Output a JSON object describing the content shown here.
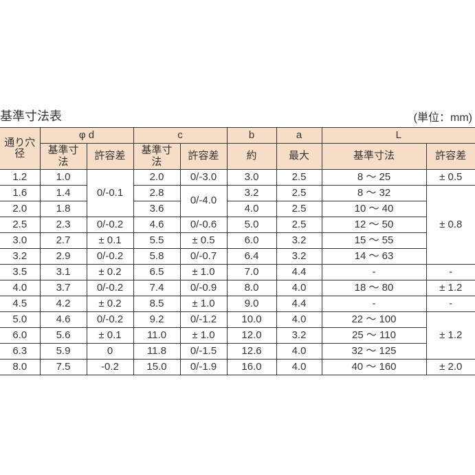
{
  "title": "基準寸法表",
  "units": "(単位：mm)",
  "header_bg": "#f6ddc8",
  "border_color": "#333333",
  "text_color": "#333333",
  "font_size_body": 15,
  "font_size_title": 18,
  "columns": {
    "nominal": "通り穴径",
    "phi_d": "φ d",
    "phi_d_base": "基準寸法",
    "phi_d_tol": "許容差",
    "c": "c",
    "c_base": "基準寸法",
    "c_tol": "許容差",
    "b": "b",
    "b_sub": "約",
    "a": "a",
    "a_sub": "最大",
    "L": "L",
    "L_base": "基準寸法",
    "L_tol": "許容差"
  },
  "rows": [
    {
      "nom": "1.2",
      "phi_b": "1.0",
      "phi_t": null,
      "c_b": "2.0",
      "c_t": "0/-3.0",
      "b": "3.0",
      "a": "2.5",
      "l_b": "8 ～ 25",
      "l_t": "± 0.5"
    },
    {
      "nom": "1.6",
      "phi_b": "1.4",
      "phi_t": "0/-0.1",
      "c_b": "2.8",
      "c_t": null,
      "b": "3.2",
      "a": "2.5",
      "l_b": "8 ～ 32",
      "l_t": null
    },
    {
      "nom": "2.0",
      "phi_b": "1.8",
      "phi_t": null,
      "c_b": "3.6",
      "c_t": "0/-4.0",
      "b": "4.0",
      "a": "2.5",
      "l_b": "10 ～ 40",
      "l_t": null
    },
    {
      "nom": "2.5",
      "phi_b": "2.3",
      "phi_t": "0/-0.2",
      "c_b": "4.6",
      "c_t": "0/-0.6",
      "b": "5.0",
      "a": "2.5",
      "l_b": "12 ～ 50",
      "l_t": "± 0.8"
    },
    {
      "nom": "3.0",
      "phi_b": "2.7",
      "phi_t": "± 0.1",
      "c_b": "5.5",
      "c_t": "± 0.5",
      "b": "6.0",
      "a": "3.2",
      "l_b": "15 ～ 55",
      "l_t": null
    },
    {
      "nom": "3.2",
      "phi_b": "2.9",
      "phi_t": "0/-0.2",
      "c_b": "5.8",
      "c_t": "0/-0.7",
      "b": "6.4",
      "a": "3.2",
      "l_b": "14 ～ 63",
      "l_t": null
    },
    {
      "nom": "3.5",
      "phi_b": "3.1",
      "phi_t": "± 0.2",
      "c_b": "6.5",
      "c_t": "± 1.0",
      "b": "7.0",
      "a": "4.4",
      "l_b": "-",
      "l_t": "-"
    },
    {
      "nom": "4.0",
      "phi_b": "3.7",
      "phi_t": "0/-0.2",
      "c_b": "7.4",
      "c_t": "0/-0.9",
      "b": "8.0",
      "a": "4.0",
      "l_b": "18 ～ 80",
      "l_t": "± 1.2"
    },
    {
      "nom": "4.5",
      "phi_b": "4.2",
      "phi_t": "± 0.2",
      "c_b": "8.5",
      "c_t": "± 1.0",
      "b": "9.0",
      "a": "4.4",
      "l_b": "-",
      "l_t": "-"
    },
    {
      "nom": "5.0",
      "phi_b": "4.6",
      "phi_t": "0/-0.2",
      "c_b": "9.2",
      "c_t": "0/-1.2",
      "b": "10.0",
      "a": "4.0",
      "l_b": "22 ～ 100",
      "l_t": null
    },
    {
      "nom": "6.0",
      "phi_b": "5.6",
      "phi_t": "± 0.1",
      "c_b": "11.0",
      "c_t": "± 1.0",
      "b": "12.0",
      "a": "3.2",
      "l_b": "25 ～ 110",
      "l_t": "± 1.2"
    },
    {
      "nom": "6.3",
      "phi_b": "5.9",
      "phi_t": "0",
      "c_b": "11.8",
      "c_t": "0/-1.5",
      "b": "12.6",
      "a": "4.0",
      "l_b": "32 ～ 125",
      "l_t": null
    },
    {
      "nom": "8.0",
      "phi_b": "7.5",
      "phi_t": "-0.2",
      "c_b": "15.0",
      "c_t": "0/-1.9",
      "b": "16.0",
      "a": "4.0",
      "l_b": "40 ～ 160",
      "l_t": "± 2.0"
    }
  ],
  "merges": {
    "phi_t": [
      {
        "start": 0,
        "span": 3,
        "value": "0/-0.1"
      }
    ],
    "c_t": [
      {
        "start": 1,
        "span": 2,
        "value": "0/-4.0"
      }
    ],
    "l_t": [
      {
        "start": 1,
        "span": 5,
        "value": "± 0.8"
      },
      {
        "start": 9,
        "span": 3,
        "value": "± 1.2"
      }
    ]
  }
}
